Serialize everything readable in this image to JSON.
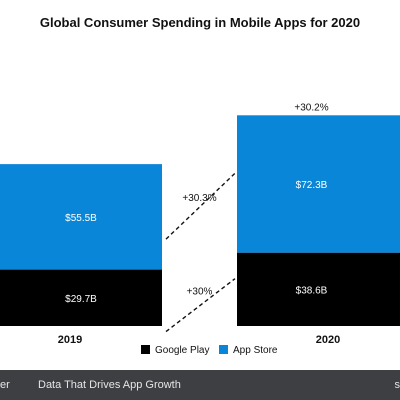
{
  "chart_data": {
    "type": "bar",
    "stacked": true,
    "title": "Global Consumer Spending in Mobile Apps for 2020",
    "categories": [
      "2019",
      "2020"
    ],
    "series": [
      {
        "name": "Google Play",
        "color": "#000000",
        "values": [
          29.7,
          38.6
        ],
        "labels": [
          "$29.7B",
          "$38.6B"
        ]
      },
      {
        "name": "App Store",
        "color": "#0a86d8",
        "values": [
          55.5,
          72.3
        ],
        "labels": [
          "$55.5B",
          "$72.3B"
        ]
      }
    ],
    "growth": {
      "google_play": "+30%",
      "app_store": "+30.3%",
      "total": "+30.2%"
    },
    "legend_position": "bottom-center",
    "grid": false
  },
  "footer": {
    "brand": "er",
    "tagline": "Data That Drives App Growth",
    "right": "s"
  }
}
